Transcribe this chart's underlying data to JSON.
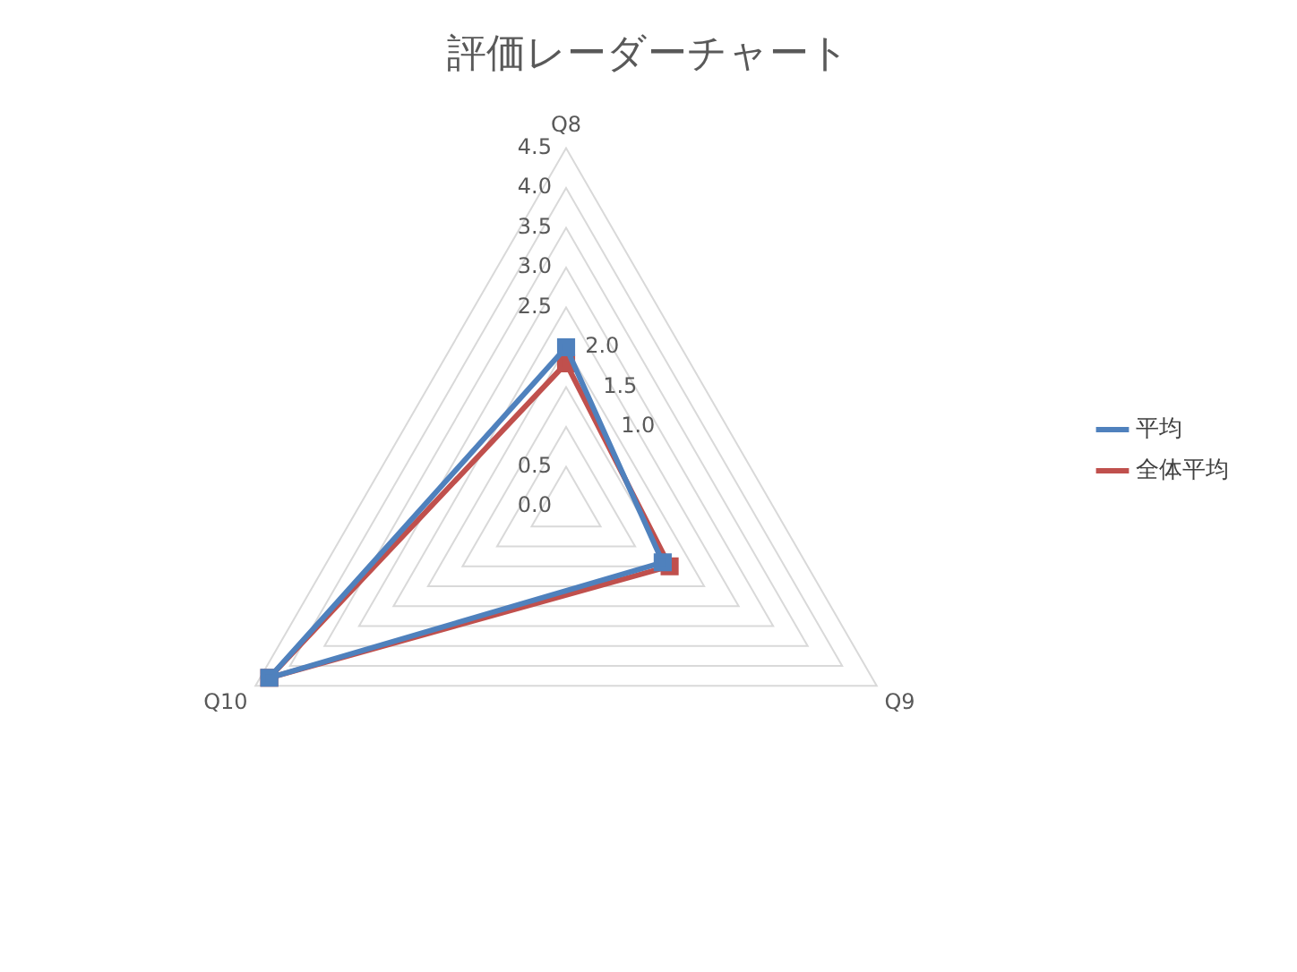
{
  "chart_data": {
    "type": "radar",
    "title": "評価レーダーチャート",
    "categories": [
      "Q8",
      "Q9",
      "Q10"
    ],
    "series": [
      {
        "name": "平均",
        "color": "#4f81bd",
        "values": [
          2.0,
          1.4,
          4.3
        ]
      },
      {
        "name": "全体平均",
        "color": "#c0504d",
        "values": [
          1.8,
          1.5,
          4.3
        ]
      }
    ],
    "ylim": [
      0,
      4.5
    ],
    "yticks": [
      {
        "value": 0,
        "label": "0.0"
      },
      {
        "value": 0.5,
        "label": "0.5"
      },
      {
        "value": 1,
        "label": "1.0"
      },
      {
        "value": 1.5,
        "label": "1.5"
      },
      {
        "value": 2,
        "label": "2.0"
      },
      {
        "value": 2.5,
        "label": "2.5"
      },
      {
        "value": 3,
        "label": "3.0"
      },
      {
        "value": 3.5,
        "label": "3.5"
      },
      {
        "value": 4,
        "label": "4.0"
      },
      {
        "value": 4.5,
        "label": "4.5"
      }
    ],
    "grid": true,
    "legend": "right",
    "marker": "square",
    "line_style": "solid"
  }
}
